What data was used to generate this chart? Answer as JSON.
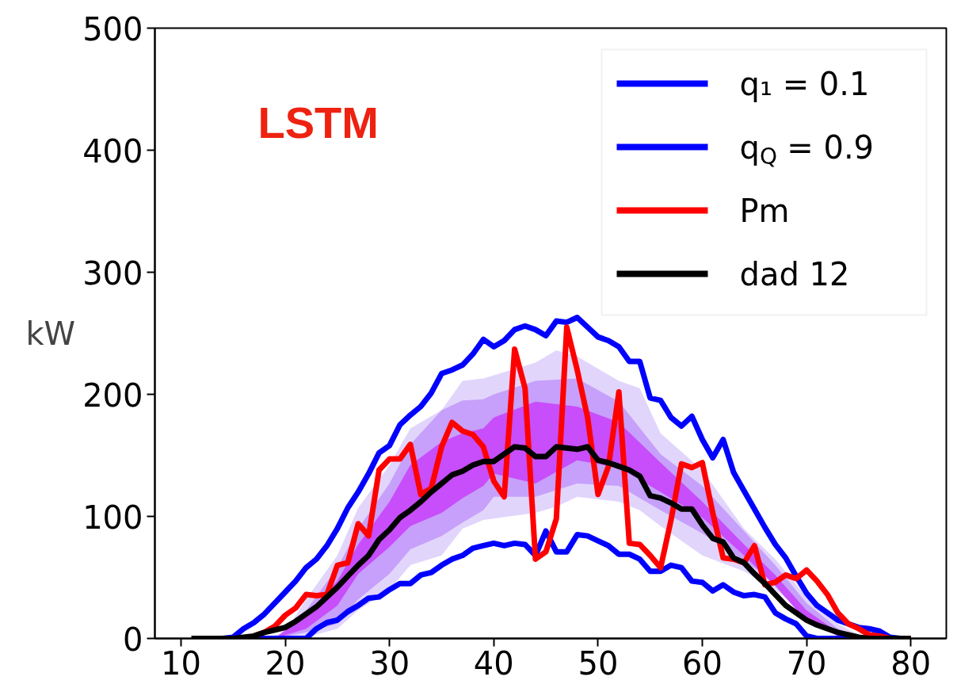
{
  "chart_data": {
    "type": "line",
    "ylabel": "kW",
    "annotations": [
      "LSTM"
    ],
    "xlim": [
      7.5,
      83.4
    ],
    "ylim": [
      0,
      500
    ],
    "xticks": [
      10,
      20,
      30,
      40,
      50,
      60,
      70,
      80
    ],
    "yticks": [
      0,
      100,
      200,
      300,
      400,
      500
    ],
    "grid": false,
    "legend": "top right",
    "series": [
      {
        "type": "line",
        "color": "#e2d5fc",
        "x": [
          18,
          20,
          22,
          25,
          27,
          30,
          32,
          35,
          37,
          39,
          44,
          46,
          48,
          52,
          54,
          56,
          60,
          64,
          67,
          70,
          73,
          75,
          77
        ],
        "values": [
          null,
          null,
          null,
          null,
          null,
          null,
          null,
          null,
          null,
          null,
          null,
          null,
          null,
          null,
          null,
          null,
          null,
          null,
          null,
          null,
          null,
          null,
          null
        ],
        "upper": [
          0,
          5,
          32,
          68,
          107,
          142,
          172,
          187,
          211,
          213,
          226,
          236,
          231,
          211,
          205,
          168,
          138,
          90,
          65,
          34,
          12,
          3,
          0
        ],
        "lower": [
          0,
          0,
          1,
          8,
          23,
          40,
          60,
          68,
          90,
          97,
          103,
          108,
          116,
          112,
          105,
          92,
          68,
          55,
          40,
          19,
          4,
          1,
          0
        ]
      },
      {
        "type": "line",
        "color": "#c6a0fa",
        "x": [
          19,
          22,
          25,
          27,
          30,
          32,
          35,
          37,
          39,
          40,
          44,
          48,
          52,
          56,
          60,
          64,
          67,
          70,
          73,
          75,
          77
        ],
        "values": [
          null,
          null,
          null,
          null,
          null,
          null,
          null,
          null,
          null,
          null,
          null,
          null,
          null,
          null,
          null,
          null,
          null,
          null,
          null,
          null,
          null
        ],
        "upper": [
          0,
          23,
          58,
          90,
          127,
          159,
          187,
          195,
          196,
          200,
          211,
          213,
          194,
          151,
          125,
          88,
          60,
          29,
          8,
          2,
          0
        ],
        "lower": [
          0,
          5,
          12,
          32,
          53,
          73,
          84,
          95,
          105,
          116,
          116,
          127,
          125,
          105,
          86,
          64,
          45,
          16,
          2,
          0,
          0
        ]
      },
      {
        "type": "line",
        "color": "#c84dfb",
        "x": [
          19,
          22,
          25,
          27,
          30,
          32,
          35,
          37,
          39,
          40,
          44,
          48,
          52,
          56,
          60,
          64,
          67,
          70,
          73,
          75,
          77
        ],
        "values": [
          null,
          null,
          null,
          null,
          null,
          null,
          null,
          null,
          null,
          null,
          null,
          null,
          null,
          null,
          null,
          null,
          null,
          null,
          null,
          null,
          null
        ],
        "upper": [
          0,
          19,
          47,
          77,
          112,
          142,
          161,
          168,
          172,
          181,
          194,
          190,
          177,
          144,
          112,
          77,
          52,
          23,
          5,
          1,
          0
        ],
        "lower": [
          0,
          8,
          27,
          53,
          75,
          92,
          103,
          115,
          125,
          135,
          127,
          146,
          140,
          120,
          99,
          68,
          43,
          14,
          2,
          0,
          0
        ]
      },
      {
        "name": "q₁ = 0.1",
        "color": "#0000ff",
        "x": [
          13,
          14,
          15,
          16,
          17,
          18,
          19,
          20,
          21,
          22,
          23,
          24,
          25,
          26,
          27,
          28,
          29,
          30,
          31,
          32,
          33,
          34,
          35,
          36,
          37,
          38,
          39,
          40,
          41,
          42,
          43,
          44,
          45,
          46,
          47,
          48,
          49,
          50,
          51,
          52,
          53,
          54,
          55,
          56,
          57,
          58,
          59,
          60,
          61,
          62,
          63,
          64,
          65,
          66,
          67,
          68,
          69,
          70,
          71,
          72,
          73,
          74,
          75,
          76,
          77,
          78,
          79,
          80
        ],
        "values": [
          0,
          0,
          0,
          0,
          0,
          0,
          0,
          0,
          0,
          0,
          8,
          13,
          15,
          22,
          27,
          33,
          34,
          40,
          45,
          45,
          52,
          54,
          60,
          65,
          68,
          74,
          76,
          78,
          76,
          78,
          77,
          68,
          88,
          71,
          71,
          85,
          84,
          80,
          76,
          69,
          69,
          65,
          55,
          55,
          60,
          58,
          47,
          46,
          39,
          44,
          38,
          35,
          36,
          34,
          21,
          16,
          12,
          2,
          0,
          0,
          0,
          0,
          0,
          0,
          0,
          0,
          0,
          0
        ]
      },
      {
        "name": "q$_{Q}$ = 0.9",
        "color": "#0000ff",
        "x": [
          13,
          14,
          15,
          16,
          17,
          18,
          19,
          20,
          21,
          22,
          23,
          24,
          25,
          26,
          27,
          28,
          29,
          30,
          31,
          32,
          33,
          34,
          35,
          36,
          37,
          38,
          39,
          40,
          41,
          42,
          43,
          44,
          45,
          46,
          47,
          48,
          49,
          50,
          51,
          52,
          53,
          54,
          55,
          56,
          57,
          58,
          59,
          60,
          61,
          62,
          63,
          64,
          65,
          66,
          67,
          68,
          69,
          70,
          71,
          72,
          73,
          74,
          75,
          76,
          77,
          78,
          79,
          80
        ],
        "values": [
          0,
          0,
          1,
          8,
          13,
          20,
          29,
          38,
          47,
          58,
          65,
          76,
          90,
          107,
          120,
          135,
          152,
          158,
          175,
          183,
          190,
          201,
          217,
          220,
          224,
          233,
          245,
          239,
          244,
          253,
          256,
          253,
          248,
          260,
          259,
          263,
          255,
          247,
          244,
          239,
          227,
          227,
          197,
          195,
          181,
          174,
          182,
          163,
          148,
          163,
          136,
          121,
          106,
          91,
          77,
          66,
          51,
          37,
          27,
          21,
          15,
          12,
          9,
          8,
          6,
          1,
          0,
          0
        ]
      },
      {
        "name": "Pm",
        "color": "#ff0000",
        "x": [
          17,
          18,
          19,
          20,
          21,
          22,
          23,
          24,
          25,
          26,
          27,
          28,
          29,
          30,
          31,
          32,
          33,
          34,
          35,
          36,
          37,
          38,
          39,
          40,
          41,
          42,
          43,
          44,
          45,
          46,
          47,
          48,
          49,
          50,
          51,
          52,
          53,
          54,
          55,
          56,
          57,
          58,
          59,
          60,
          61,
          62,
          63,
          64,
          65,
          66,
          67,
          68,
          69,
          70,
          71,
          72,
          73,
          74,
          75,
          76,
          77,
          78,
          79,
          80
        ],
        "values": [
          2,
          5,
          10,
          19,
          25,
          36,
          35,
          36,
          60,
          62,
          94,
          84,
          138,
          147,
          147,
          159,
          118,
          123,
          157,
          177,
          170,
          167,
          157,
          129,
          116,
          237,
          205,
          65,
          71,
          98,
          255,
          220,
          181,
          118,
          141,
          202,
          78,
          77,
          68,
          58,
          97,
          143,
          140,
          144,
          103,
          66,
          65,
          62,
          76,
          44,
          46,
          52,
          49,
          56,
          47,
          36,
          21,
          12,
          8,
          3,
          2,
          0,
          0,
          0
        ]
      },
      {
        "name": "dad 12",
        "color": "#000000",
        "x": [
          11,
          12,
          13,
          14,
          15,
          16,
          17,
          18,
          19,
          20,
          21,
          22,
          23,
          24,
          25,
          26,
          27,
          28,
          29,
          30,
          31,
          32,
          33,
          34,
          35,
          36,
          37,
          38,
          39,
          40,
          41,
          42,
          43,
          44,
          45,
          46,
          47,
          48,
          49,
          50,
          51,
          52,
          53,
          54,
          55,
          56,
          57,
          58,
          59,
          60,
          61,
          62,
          63,
          64,
          65,
          66,
          67,
          68,
          69,
          70,
          71,
          72,
          73,
          74,
          75,
          76,
          77,
          78,
          79,
          80
        ],
        "values": [
          0,
          0,
          0,
          0,
          0,
          1,
          2,
          5,
          7,
          9,
          14,
          20,
          26,
          34,
          42,
          51,
          60,
          68,
          81,
          89,
          99,
          105,
          112,
          120,
          127,
          134,
          137,
          142,
          145,
          145,
          151,
          157,
          156,
          149,
          149,
          157,
          156,
          155,
          157,
          146,
          144,
          141,
          138,
          133,
          117,
          115,
          111,
          106,
          106,
          93,
          82,
          79,
          66,
          62,
          53,
          45,
          36,
          27,
          21,
          15,
          11,
          8,
          5,
          3,
          1,
          0,
          0,
          0,
          0,
          0
        ]
      }
    ]
  }
}
